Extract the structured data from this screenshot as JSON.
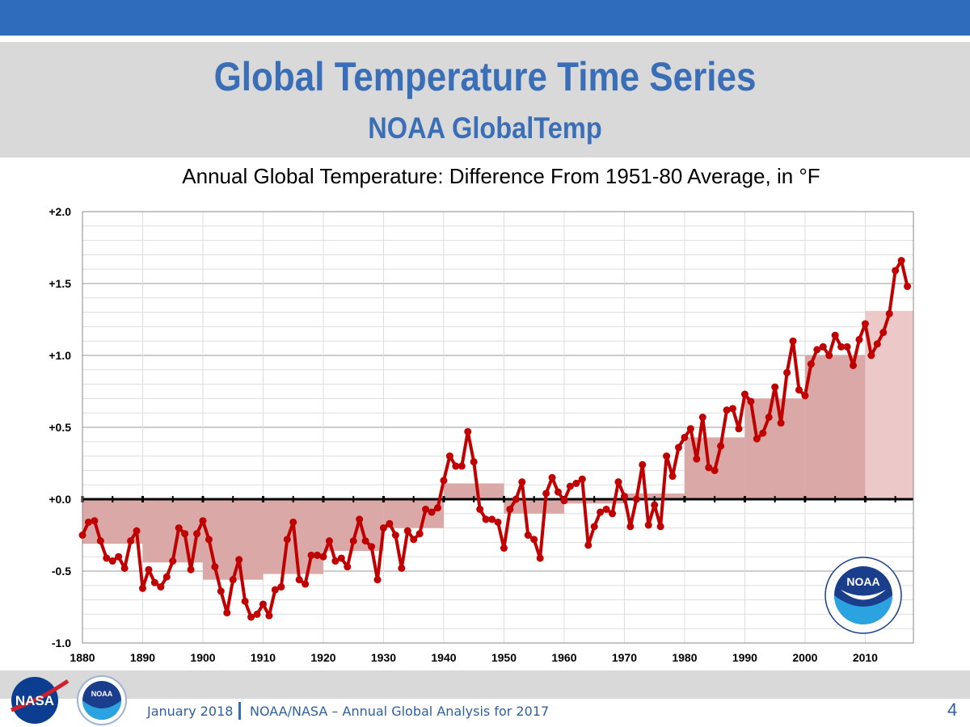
{
  "header": {
    "title": "Global Temperature Time Series",
    "subtitle": "NOAA GlobalTemp"
  },
  "footer": {
    "date": "January 2018",
    "source": "NOAA/NASA – Annual  Global  Analysis  for  2017",
    "page": "4"
  },
  "logos": {
    "nasa": "NASA",
    "noaa": "NOAA",
    "noaa_ring": "NATIONAL OCEANIC AND ATMOSPHERIC ADMINISTRATION · U.S. DEPARTMENT OF COMMERCE"
  },
  "colors": {
    "accent": "#2f6cb9",
    "series": "#c00000",
    "decade_bar": "#dba8a8",
    "decade_bar_current": "#ecc8c8"
  },
  "chart_data": {
    "type": "line",
    "title": "Annual Global Temperature: Difference From 1951-80 Average, in °F",
    "xlabel": "",
    "ylabel": "",
    "xlim": [
      1880,
      2018
    ],
    "ylim": [
      -1.0,
      2.0
    ],
    "grid": true,
    "x_ticks": [
      "1880",
      "1890",
      "1900",
      "1910",
      "1920",
      "1930",
      "1940",
      "1950",
      "1960",
      "1970",
      "1980",
      "1990",
      "2000",
      "2010"
    ],
    "y_ticks": [
      "+2.0",
      "+1.5",
      "+1.0",
      "+0.5",
      "+0.0",
      "-0.5",
      "-1.0"
    ],
    "annual": {
      "start_year": 1880,
      "values": [
        -0.25,
        -0.16,
        -0.15,
        -0.29,
        -0.41,
        -0.43,
        -0.4,
        -0.48,
        -0.29,
        -0.22,
        -0.62,
        -0.49,
        -0.58,
        -0.61,
        -0.54,
        -0.43,
        -0.2,
        -0.24,
        -0.49,
        -0.24,
        -0.15,
        -0.28,
        -0.47,
        -0.64,
        -0.79,
        -0.56,
        -0.42,
        -0.71,
        -0.82,
        -0.8,
        -0.73,
        -0.81,
        -0.63,
        -0.61,
        -0.28,
        -0.16,
        -0.56,
        -0.59,
        -0.39,
        -0.39,
        -0.4,
        -0.29,
        -0.43,
        -0.41,
        -0.47,
        -0.29,
        -0.14,
        -0.29,
        -0.33,
        -0.56,
        -0.2,
        -0.17,
        -0.25,
        -0.48,
        -0.22,
        -0.28,
        -0.24,
        -0.07,
        -0.09,
        -0.06,
        0.13,
        0.3,
        0.23,
        0.23,
        0.47,
        0.26,
        -0.07,
        -0.14,
        -0.14,
        -0.16,
        -0.34,
        -0.07,
        0.0,
        0.12,
        -0.25,
        -0.28,
        -0.41,
        0.04,
        0.15,
        0.05,
        -0.01,
        0.09,
        0.11,
        0.14,
        -0.32,
        -0.19,
        -0.09,
        -0.07,
        -0.1,
        0.12,
        0.02,
        -0.19,
        0.0,
        0.24,
        -0.18,
        -0.04,
        -0.19,
        0.3,
        0.16,
        0.36,
        0.43,
        0.49,
        0.28,
        0.57,
        0.22,
        0.2,
        0.37,
        0.62,
        0.63,
        0.49,
        0.73,
        0.68,
        0.42,
        0.46,
        0.57,
        0.78,
        0.53,
        0.88,
        1.1,
        0.76,
        0.72,
        0.94,
        1.04,
        1.06,
        1.0,
        1.14,
        1.06,
        1.06,
        0.93,
        1.11,
        1.22,
        1.0,
        1.08,
        1.16,
        1.29,
        1.59,
        1.66,
        1.48
      ]
    },
    "decadal": [
      {
        "decade": 1880,
        "value": -0.31
      },
      {
        "decade": 1890,
        "value": -0.44
      },
      {
        "decade": 1900,
        "value": -0.56
      },
      {
        "decade": 1910,
        "value": -0.52
      },
      {
        "decade": 1920,
        "value": -0.36
      },
      {
        "decade": 1930,
        "value": -0.2
      },
      {
        "decade": 1940,
        "value": 0.11
      },
      {
        "decade": 1950,
        "value": -0.1
      },
      {
        "decade": 1960,
        "value": -0.03
      },
      {
        "decade": 1970,
        "value": 0.04
      },
      {
        "decade": 1980,
        "value": 0.43
      },
      {
        "decade": 1990,
        "value": 0.7
      },
      {
        "decade": 2000,
        "value": 1.0
      },
      {
        "decade": 2010,
        "value": 1.31
      }
    ]
  }
}
